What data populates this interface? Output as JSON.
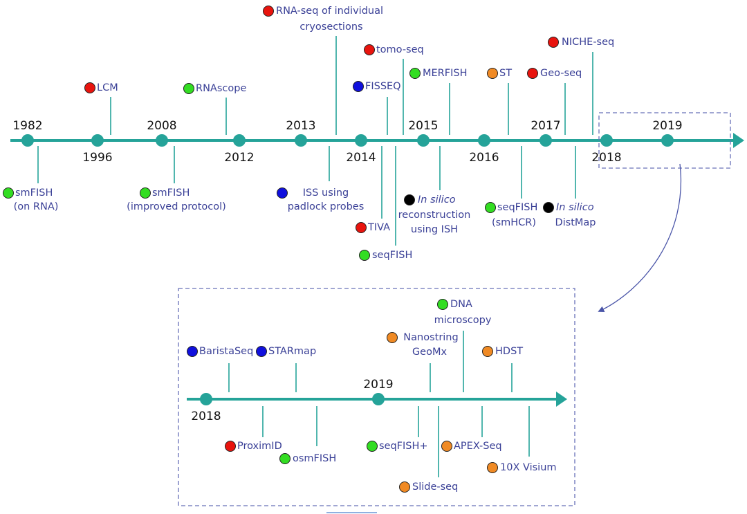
{
  "timeline": {
    "years": [
      "1982",
      "1996",
      "2008",
      "2012",
      "2013",
      "2014",
      "2015",
      "2016",
      "2017",
      "2018",
      "2019"
    ],
    "events": [
      {
        "lines": [
          "smFISH",
          "(on RNA)"
        ],
        "color": "#33dd22"
      },
      {
        "lines": [
          "LCM"
        ],
        "color": "#e8140e"
      },
      {
        "lines": [
          "smFISH",
          "(improved protocol)"
        ],
        "color": "#33dd22"
      },
      {
        "lines": [
          "RNAscope"
        ],
        "color": "#33dd22"
      },
      {
        "lines": [
          "ISS using",
          "padlock probes"
        ],
        "color": "#1010dd"
      },
      {
        "lines": [
          "RNA-seq of individual",
          "cryosections"
        ],
        "color": "#e8140e"
      },
      {
        "lines": [
          "TIVA"
        ],
        "color": "#e8140e"
      },
      {
        "lines": [
          "FISSEQ"
        ],
        "color": "#1010dd"
      },
      {
        "lines": [
          "tomo-seq"
        ],
        "color": "#e8140e"
      },
      {
        "lines": [
          "seqFISH"
        ],
        "color": "#33dd22"
      },
      {
        "lines": [
          "In silico",
          "reconstruction",
          "using ISH"
        ],
        "color": "#000000"
      },
      {
        "lines": [
          "MERFISH"
        ],
        "color": "#33dd22"
      },
      {
        "lines": [
          "ST"
        ],
        "color": "#f08a24"
      },
      {
        "lines": [
          "seqFISH",
          "(smHCR)"
        ],
        "color": "#33dd22"
      },
      {
        "lines": [
          "Geo-seq"
        ],
        "color": "#e8140e"
      },
      {
        "lines": [
          "In silico",
          "DistMap"
        ],
        "color": "#000000"
      },
      {
        "lines": [
          "NICHE-seq"
        ],
        "color": "#e8140e"
      }
    ]
  },
  "inset": {
    "years": [
      "2018",
      "2019"
    ],
    "events": [
      {
        "lines": [
          "BaristaSeq"
        ],
        "color": "#1010dd"
      },
      {
        "lines": [
          "STARmap"
        ],
        "color": "#1010dd"
      },
      {
        "lines": [
          "ProximID"
        ],
        "color": "#e8140e"
      },
      {
        "lines": [
          "osmFISH"
        ],
        "color": "#33dd22"
      },
      {
        "lines": [
          "Nanostring",
          "GeoMx"
        ],
        "color": "#f08a24"
      },
      {
        "lines": [
          "seqFISH+"
        ],
        "color": "#33dd22"
      },
      {
        "lines": [
          "Slide-seq"
        ],
        "color": "#f08a24"
      },
      {
        "lines": [
          "DNA",
          "microscopy"
        ],
        "color": "#33dd22"
      },
      {
        "lines": [
          "APEX-Seq"
        ],
        "color": "#f08a24"
      },
      {
        "lines": [
          "HDST"
        ],
        "color": "#f08a24"
      },
      {
        "lines": [
          "10X Visium"
        ],
        "color": "#f08a24"
      }
    ]
  }
}
